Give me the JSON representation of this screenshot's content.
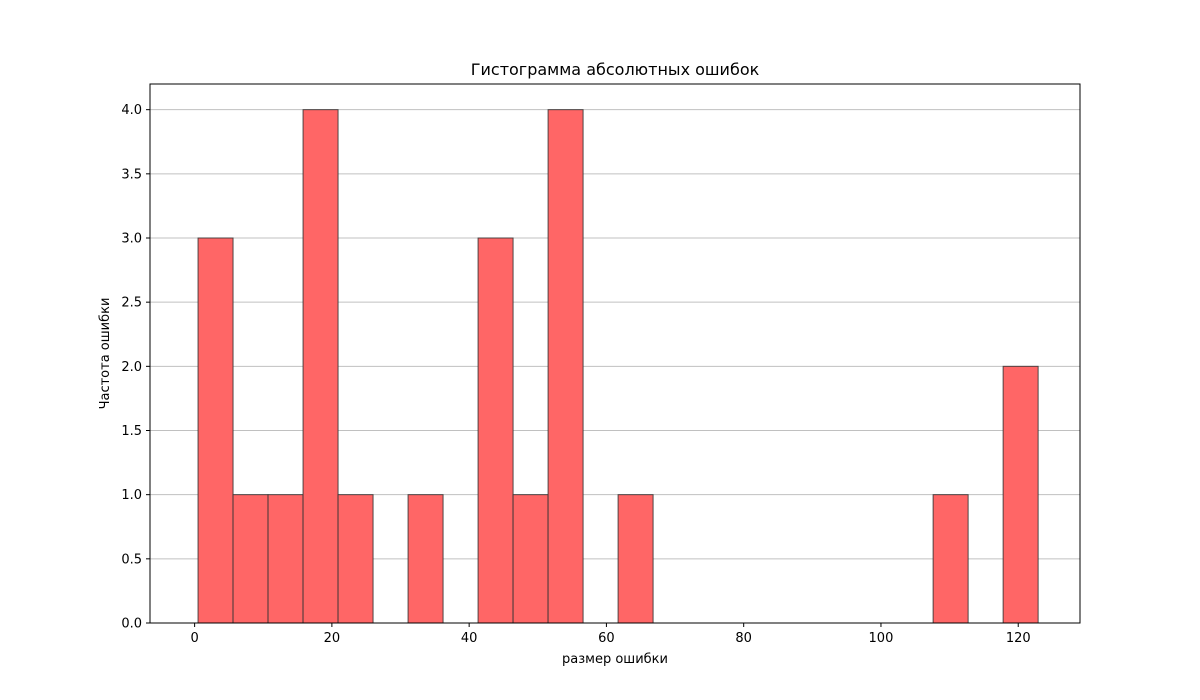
{
  "chart_data": {
    "type": "bar",
    "title": "Гистограмма абсолютных ошибок",
    "xlabel": "размер ошибки",
    "ylabel": "Частота ошибки",
    "xlim": [
      -6.5,
      129
    ],
    "ylim": [
      0,
      4.2
    ],
    "xticks": [
      0,
      20,
      40,
      60,
      80,
      100,
      120
    ],
    "xtick_labels": [
      "0",
      "20",
      "40",
      "60",
      "80",
      "100",
      "120"
    ],
    "yticks": [
      0,
      0.5,
      1,
      1.5,
      2,
      2.5,
      3,
      3.5,
      4
    ],
    "ytick_labels": [
      "0.0",
      "0.5",
      "1.0",
      "1.5",
      "2.0",
      "2.5",
      "3.0",
      "3.5",
      "4.0"
    ],
    "grid": "y",
    "bar_color": "#ff6666",
    "edge_color": "#333333",
    "bins": [
      {
        "start": 0.5,
        "end": 5.6,
        "count": 3
      },
      {
        "start": 5.6,
        "end": 10.7,
        "count": 1
      },
      {
        "start": 10.7,
        "end": 15.8,
        "count": 1
      },
      {
        "start": 15.8,
        "end": 20.9,
        "count": 4
      },
      {
        "start": 20.9,
        "end": 26.0,
        "count": 1
      },
      {
        "start": 26.0,
        "end": 31.1,
        "count": 0
      },
      {
        "start": 31.1,
        "end": 36.2,
        "count": 1
      },
      {
        "start": 36.2,
        "end": 41.3,
        "count": 0
      },
      {
        "start": 41.3,
        "end": 46.4,
        "count": 3
      },
      {
        "start": 46.4,
        "end": 51.5,
        "count": 1
      },
      {
        "start": 51.5,
        "end": 56.6,
        "count": 4
      },
      {
        "start": 56.6,
        "end": 61.7,
        "count": 0
      },
      {
        "start": 61.7,
        "end": 66.8,
        "count": 1
      },
      {
        "start": 66.8,
        "end": 71.9,
        "count": 0
      },
      {
        "start": 71.9,
        "end": 77.0,
        "count": 0
      },
      {
        "start": 77.0,
        "end": 82.1,
        "count": 0
      },
      {
        "start": 82.1,
        "end": 87.2,
        "count": 0
      },
      {
        "start": 87.2,
        "end": 92.3,
        "count": 0
      },
      {
        "start": 92.3,
        "end": 97.4,
        "count": 0
      },
      {
        "start": 97.4,
        "end": 102.5,
        "count": 0
      },
      {
        "start": 102.5,
        "end": 107.6,
        "count": 0
      },
      {
        "start": 107.6,
        "end": 112.7,
        "count": 1
      },
      {
        "start": 112.7,
        "end": 117.8,
        "count": 0
      },
      {
        "start": 117.8,
        "end": 122.9,
        "count": 2
      }
    ]
  }
}
